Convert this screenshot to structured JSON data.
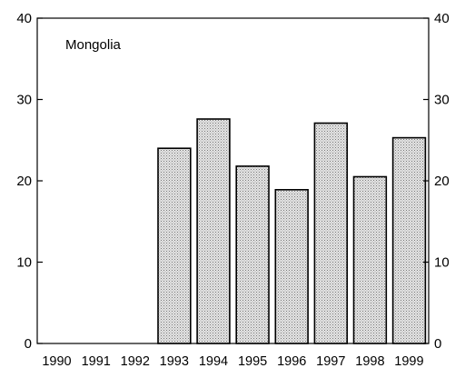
{
  "chart_data": {
    "type": "bar",
    "title": "Mongolia",
    "categories": [
      "1990",
      "1991",
      "1992",
      "1993",
      "1994",
      "1995",
      "1996",
      "1997",
      "1998",
      "1999"
    ],
    "values": [
      null,
      null,
      null,
      24.0,
      27.6,
      21.8,
      18.9,
      27.1,
      20.5,
      25.3
    ],
    "ylim": [
      0,
      40
    ],
    "yticks": [
      0,
      10,
      20,
      30,
      40
    ],
    "ytick_labels": [
      "0",
      "10",
      "20",
      "30",
      "40"
    ],
    "right_axis_mirrored": true,
    "grid": false,
    "bar_fill": "#d6d6d6",
    "bar_edge": "#000000"
  }
}
